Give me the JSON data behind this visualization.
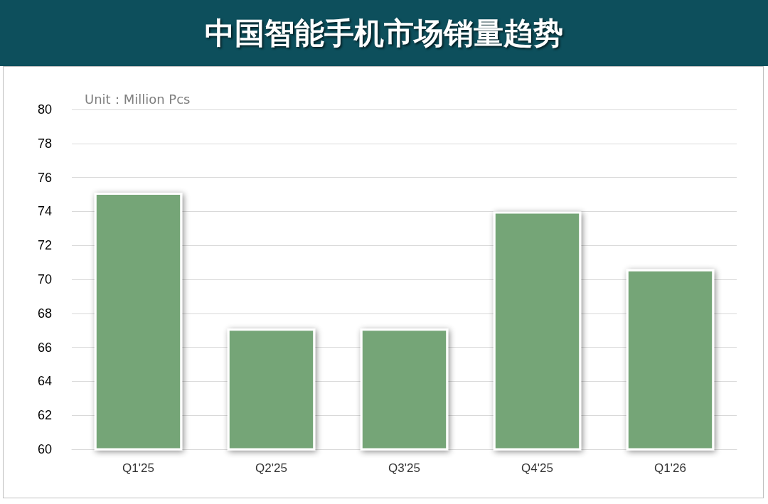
{
  "chart_data": {
    "type": "bar",
    "title": "中国智能手机市场销量趋势",
    "annotations": [
      "Unit：Million Pcs"
    ],
    "categories": [
      "Q1'25",
      "Q2'25",
      "Q3'25",
      "Q4'25",
      "Q1'26"
    ],
    "values": [
      75.1,
      67.1,
      67.1,
      74.0,
      70.6
    ],
    "color": "#74a577",
    "ylim": [
      60,
      80
    ],
    "yticks": [
      60,
      62,
      64,
      66,
      68,
      70,
      72,
      74,
      76,
      78,
      80
    ],
    "grid": "y"
  }
}
